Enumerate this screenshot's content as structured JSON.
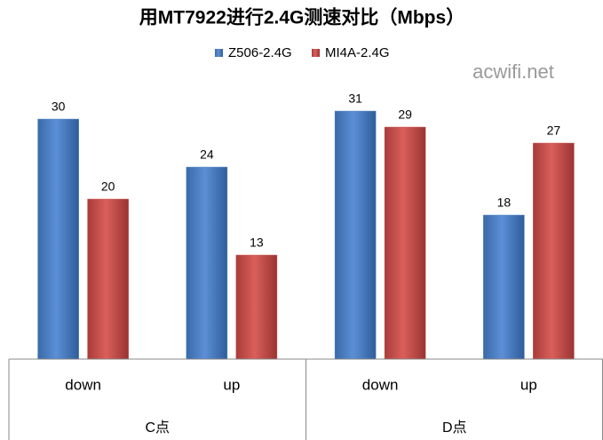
{
  "chart_data": {
    "type": "bar",
    "title": "用MT7922进行2.4G测速对比（Mbps）",
    "watermark": "acwifi.net",
    "groups": [
      {
        "name": "C点",
        "categories": [
          "down",
          "up"
        ]
      },
      {
        "name": "D点",
        "categories": [
          "down",
          "up"
        ]
      }
    ],
    "series": [
      {
        "name": "Z506-2.4G",
        "color": "#4a7ebb",
        "values": [
          30,
          24,
          31,
          18
        ]
      },
      {
        "name": "MI4A-2.4G",
        "color": "#be4b48",
        "values": [
          20,
          13,
          29,
          27
        ]
      }
    ],
    "ylim": [
      0,
      35
    ]
  }
}
